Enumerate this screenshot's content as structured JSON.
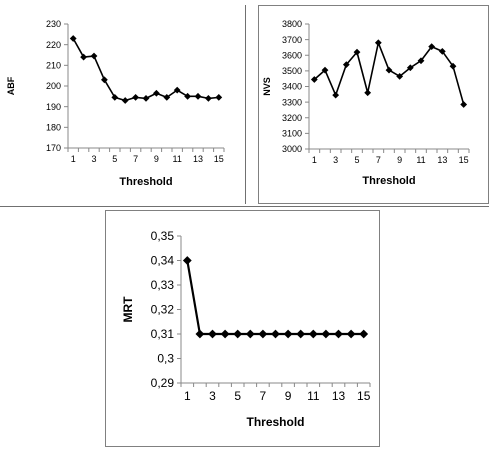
{
  "chart_data": [
    {
      "type": "line",
      "xlabel": "Threshold",
      "ylabel": "ABF",
      "x": [
        1,
        2,
        3,
        4,
        5,
        6,
        7,
        8,
        9,
        10,
        11,
        12,
        13,
        14,
        15
      ],
      "xticks": [
        "1",
        "3",
        "5",
        "7",
        "9",
        "11",
        "13",
        "15"
      ],
      "yticks": [
        "170",
        "180",
        "190",
        "200",
        "210",
        "220",
        "230"
      ],
      "ylim": [
        170,
        230
      ],
      "series": [
        {
          "values": [
            223,
            214,
            214.5,
            203,
            194.5,
            193,
            194.5,
            194,
            196.5,
            194.5,
            198,
            195,
            195,
            194,
            194.5
          ]
        }
      ],
      "marker": "diamond",
      "color": "#000000"
    },
    {
      "type": "line",
      "xlabel": "Threshold",
      "ylabel": "NVS",
      "x": [
        1,
        2,
        3,
        4,
        5,
        6,
        7,
        8,
        9,
        10,
        11,
        12,
        13,
        14,
        15
      ],
      "xticks": [
        "1",
        "3",
        "5",
        "7",
        "9",
        "11",
        "13",
        "15"
      ],
      "yticks": [
        "3000",
        "3100",
        "3200",
        "3300",
        "3400",
        "3500",
        "3600",
        "3700",
        "3800"
      ],
      "ylim": [
        3000,
        3800
      ],
      "series": [
        {
          "values": [
            3445,
            3505,
            3345,
            3540,
            3620,
            3360,
            3680,
            3505,
            3465,
            3520,
            3565,
            3655,
            3625,
            3530,
            3285
          ]
        }
      ],
      "marker": "diamond",
      "color": "#000000"
    },
    {
      "type": "line",
      "xlabel": "Threshold",
      "ylabel": "MRT",
      "x": [
        1,
        2,
        3,
        4,
        5,
        6,
        7,
        8,
        9,
        10,
        11,
        12,
        13,
        14,
        15
      ],
      "xticks": [
        "1",
        "3",
        "5",
        "7",
        "9",
        "11",
        "13",
        "15"
      ],
      "yticks": [
        "0,29",
        "0,3",
        "0,31",
        "0,32",
        "0,33",
        "0,34",
        "0,35"
      ],
      "ylim": [
        0.29,
        0.35
      ],
      "series": [
        {
          "values": [
            0.34,
            0.31,
            0.31,
            0.31,
            0.31,
            0.31,
            0.31,
            0.31,
            0.31,
            0.31,
            0.31,
            0.31,
            0.31,
            0.31,
            0.31
          ]
        }
      ],
      "marker": "diamond",
      "color": "#000000"
    }
  ]
}
